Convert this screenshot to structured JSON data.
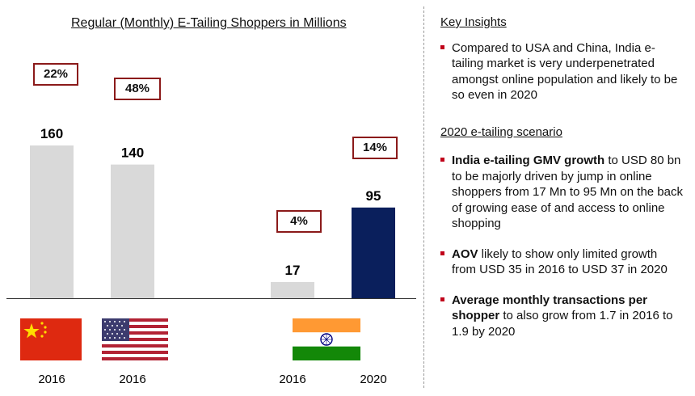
{
  "chart_data": {
    "type": "bar",
    "title": "Regular (Monthly) E-Tailing Shoppers in Millions",
    "categories": [
      "2016",
      "2016",
      "2016",
      "2020"
    ],
    "countries": [
      "China",
      "USA",
      "India",
      "India"
    ],
    "values": [
      160,
      140,
      17,
      95
    ],
    "growth_labels": [
      "22%",
      "48%",
      "4%",
      "14%"
    ],
    "ylim": [
      0,
      160
    ],
    "colors": [
      "#d9d9d9",
      "#d9d9d9",
      "#d9d9d9",
      "#0a1f5c"
    ]
  },
  "insights": {
    "key_title": "Key Insights",
    "key_bullet": "Compared to USA and China, India e-tailing market is very underpenetrated amongst online population and likely to be so even in 2020",
    "scenario_title": "2020 e-tailing scenario",
    "bullets": [
      {
        "bold": "India e-tailing GMV growth",
        "text": " to USD 80 bn to be majorly driven by jump in online shoppers from 17 Mn to 95 Mn on the back of growing ease of and access to online shopping"
      },
      {
        "bold": "AOV",
        "text": " likely to show only limited growth from USD 35 in 2016 to USD 37 in 2020"
      },
      {
        "bold": "Average monthly transactions per shopper",
        "text": " to also grow from 1.7 in 2016 to 1.9 by 2020"
      }
    ]
  },
  "colors": {
    "accent": "#c0001a",
    "box_border": "#8b1a1a",
    "navy": "#0a1f5c",
    "grey": "#d9d9d9"
  },
  "icons": [
    "china-flag-icon",
    "usa-flag-icon",
    "india-flag-icon",
    "india-flag-icon"
  ]
}
